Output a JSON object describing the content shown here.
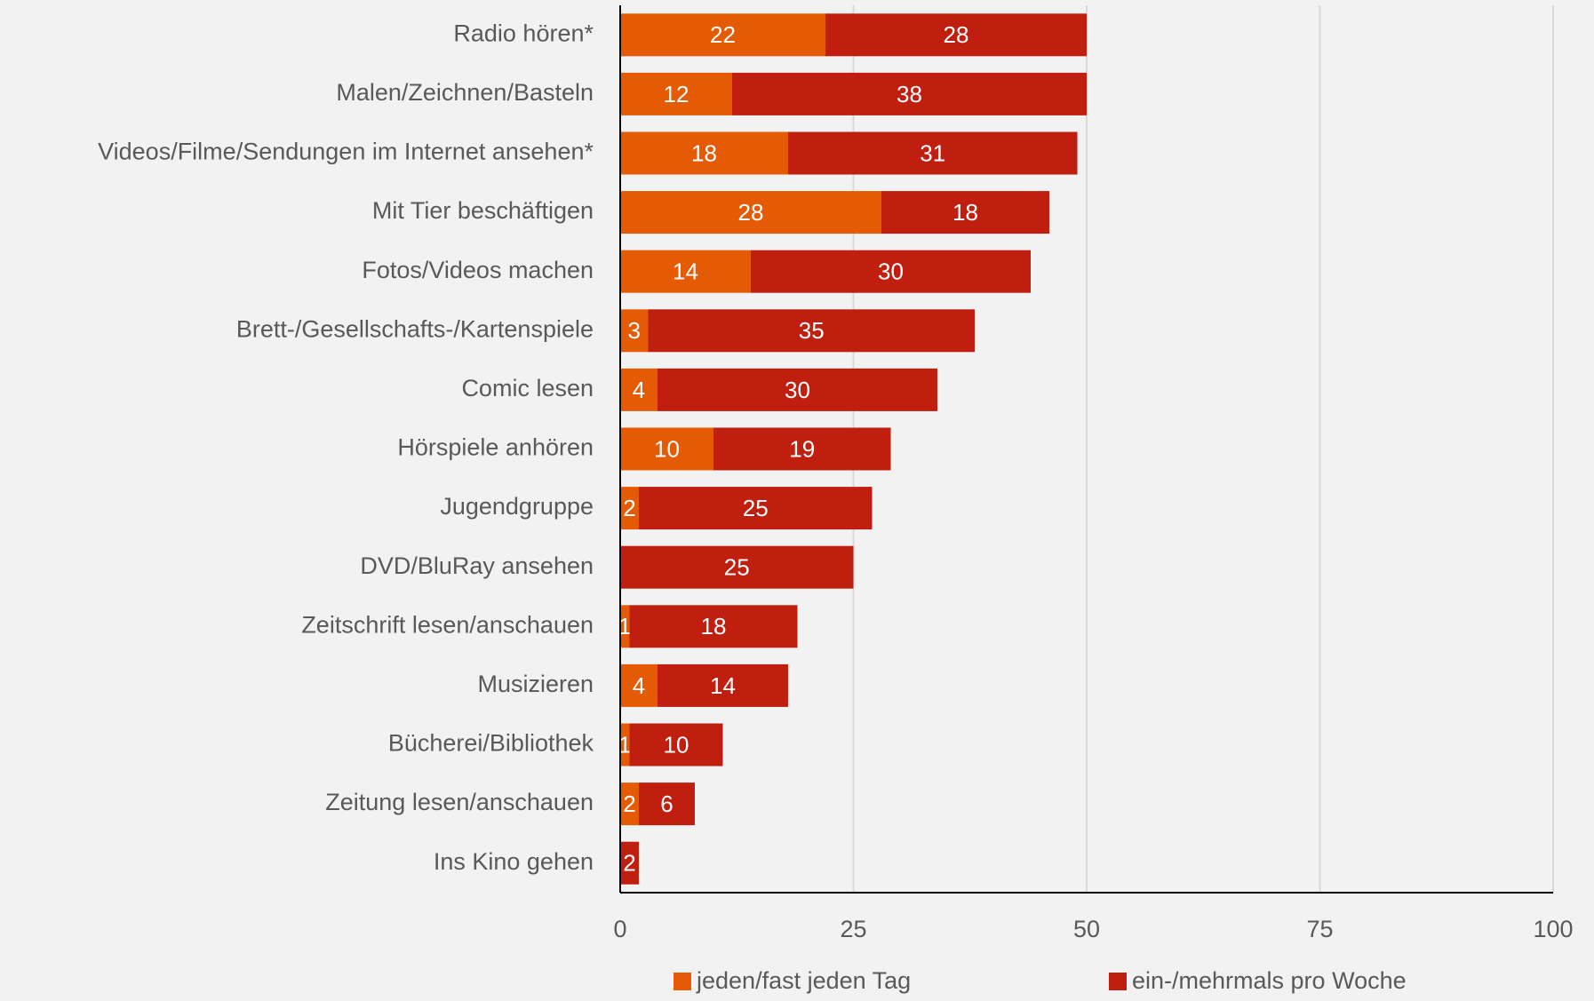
{
  "chart_data": {
    "type": "bar",
    "orientation": "horizontal",
    "stacked": true,
    "categories": [
      "Radio hören*",
      "Malen/Zeichnen/Basteln",
      "Videos/Filme/Sendungen im Internet ansehen*",
      "Mit Tier beschäftigen",
      "Fotos/Videos machen",
      "Brett-/Gesellschafts-/Kartenspiele",
      "Comic lesen",
      "Hörspiele anhören",
      "Jugendgruppe",
      "DVD/BluRay ansehen",
      "Zeitschrift lesen/anschauen",
      "Musizieren",
      "Bücherei/Bibliothek",
      "Zeitung lesen/anschauen",
      "Ins Kino gehen"
    ],
    "series": [
      {
        "name": "jeden/fast jeden Tag",
        "color": "#e55a05",
        "values": [
          22,
          12,
          18,
          28,
          14,
          3,
          4,
          10,
          2,
          null,
          1,
          4,
          1,
          2,
          null
        ]
      },
      {
        "name": "ein-/mehrmals pro Woche",
        "color": "#c01f10",
        "values": [
          28,
          38,
          31,
          18,
          30,
          35,
          30,
          19,
          25,
          25,
          18,
          14,
          10,
          6,
          2
        ]
      }
    ],
    "xlim": [
      0,
      100
    ],
    "xticks": [
      0,
      25,
      50,
      75,
      100
    ],
    "grid": true,
    "legend": "bottom"
  }
}
